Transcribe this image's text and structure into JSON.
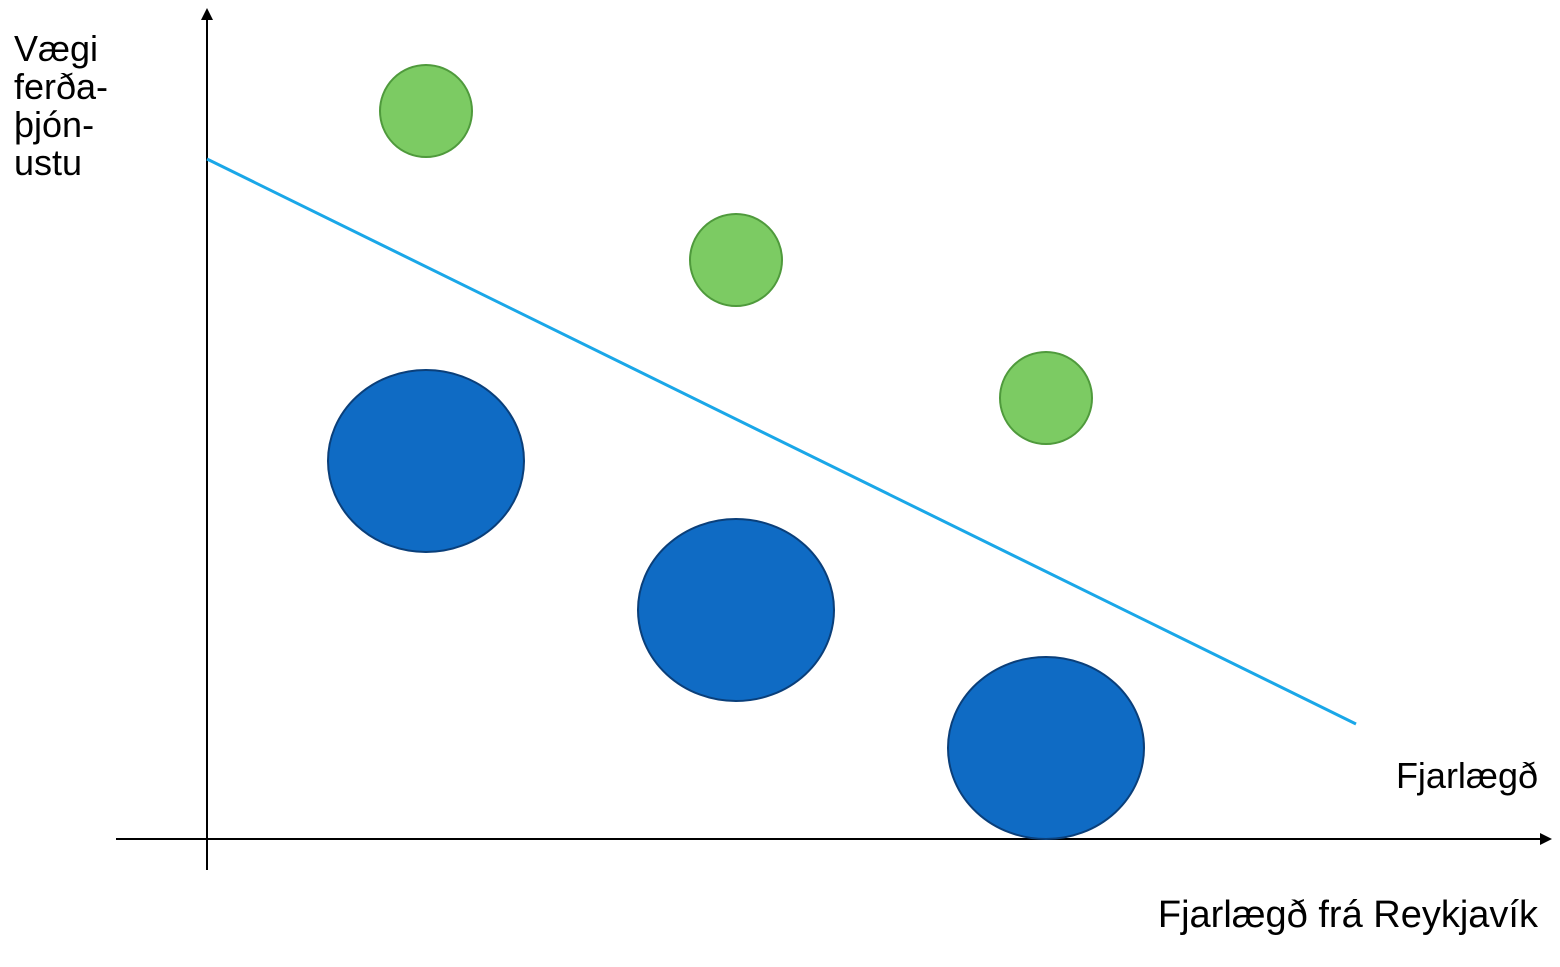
{
  "labels": {
    "y_axis": [
      "Vægi",
      "ferða-",
      "þjón-",
      "ustu"
    ],
    "line": "Fjarlægð",
    "x_axis": "Fjarlægð frá Reykjavík"
  },
  "colors": {
    "axis": "#000000",
    "trend_line": "#1aa7e8",
    "small_fill": "#7ccb63",
    "small_stroke": "#4f9a3c",
    "large_fill": "#0f6bc4",
    "large_stroke": "#0a3f7a"
  }
}
